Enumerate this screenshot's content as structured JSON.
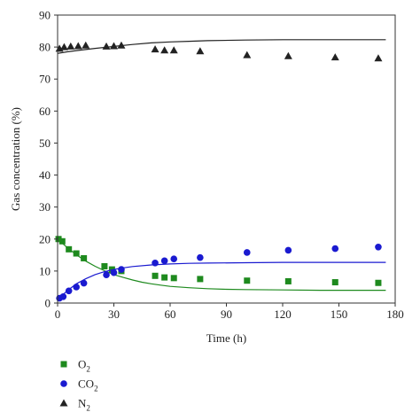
{
  "chart_data": {
    "type": "scatter",
    "xlabel": "Time (h)",
    "ylabel": "Gas concentration (%)",
    "xlim": [
      0,
      180
    ],
    "ylim": [
      0,
      90
    ],
    "xticks": [
      "0",
      "30",
      "60",
      "90",
      "120",
      "150",
      "180"
    ],
    "yticks": [
      "0",
      "10",
      "20",
      "30",
      "40",
      "50",
      "60",
      "70",
      "80",
      "90"
    ],
    "grid": false,
    "legend_position": "bottom-left",
    "series": [
      {
        "name": "O",
        "subscript": "2",
        "marker": "square",
        "color": "#1e8a1e",
        "points": [
          [
            0.5,
            20.0
          ],
          [
            2.5,
            19.3
          ],
          [
            6,
            16.8
          ],
          [
            10,
            15.5
          ],
          [
            14,
            14.0
          ],
          [
            25,
            11.5
          ],
          [
            29,
            10.5
          ],
          [
            34,
            10.0
          ],
          [
            52,
            8.5
          ],
          [
            57,
            8.0
          ],
          [
            62,
            7.8
          ],
          [
            76,
            7.5
          ],
          [
            101,
            7.0
          ],
          [
            123,
            6.8
          ],
          [
            148,
            6.5
          ],
          [
            171,
            6.3
          ]
        ],
        "fit_color": "#1e8a1e",
        "fit": [
          [
            0,
            20
          ],
          [
            5,
            17.4
          ],
          [
            10,
            15.1
          ],
          [
            15,
            13.1
          ],
          [
            20,
            11.5
          ],
          [
            25,
            10.1
          ],
          [
            30,
            8.9
          ],
          [
            35,
            8.0
          ],
          [
            40,
            7.2
          ],
          [
            45,
            6.5
          ],
          [
            50,
            6.0
          ],
          [
            55,
            5.6
          ],
          [
            60,
            5.2
          ],
          [
            70,
            4.8
          ],
          [
            80,
            4.5
          ],
          [
            90,
            4.3
          ],
          [
            100,
            4.2
          ],
          [
            120,
            4.1
          ],
          [
            140,
            4.0
          ],
          [
            160,
            4.0
          ],
          [
            175,
            4.0
          ]
        ]
      },
      {
        "name": "CO",
        "subscript": "2",
        "marker": "circle",
        "color": "#1a1ad0",
        "points": [
          [
            1,
            1.5
          ],
          [
            3,
            2.0
          ],
          [
            6,
            3.8
          ],
          [
            10,
            5.0
          ],
          [
            14,
            6.2
          ],
          [
            26,
            8.8
          ],
          [
            30,
            9.5
          ],
          [
            34,
            10.5
          ],
          [
            52,
            12.5
          ],
          [
            57,
            13.2
          ],
          [
            62,
            13.8
          ],
          [
            76,
            14.2
          ],
          [
            101,
            15.8
          ],
          [
            123,
            16.5
          ],
          [
            148,
            17.0
          ],
          [
            171,
            17.5
          ]
        ],
        "fit_color": "#1a1ad0",
        "fit": [
          [
            0,
            1
          ],
          [
            5,
            3.8
          ],
          [
            10,
            6.0
          ],
          [
            15,
            7.6
          ],
          [
            20,
            8.9
          ],
          [
            25,
            9.8
          ],
          [
            30,
            10.5
          ],
          [
            35,
            11.0
          ],
          [
            40,
            11.4
          ],
          [
            50,
            11.9
          ],
          [
            60,
            12.2
          ],
          [
            70,
            12.4
          ],
          [
            80,
            12.5
          ],
          [
            100,
            12.6
          ],
          [
            120,
            12.7
          ],
          [
            150,
            12.7
          ],
          [
            175,
            12.7
          ]
        ]
      },
      {
        "name": "N",
        "subscript": "2",
        "marker": "triangle",
        "color": "#222222",
        "points": [
          [
            1,
            79.5
          ],
          [
            3.5,
            80.0
          ],
          [
            7,
            80.2
          ],
          [
            11,
            80.3
          ],
          [
            15,
            80.5
          ],
          [
            26,
            80.2
          ],
          [
            30,
            80.3
          ],
          [
            34,
            80.5
          ],
          [
            52,
            79.3
          ],
          [
            57,
            79.0
          ],
          [
            62,
            79.0
          ],
          [
            76,
            78.7
          ],
          [
            101,
            77.5
          ],
          [
            123,
            77.2
          ],
          [
            148,
            76.8
          ],
          [
            171,
            76.5
          ]
        ],
        "fit_color": "#222222",
        "fit": [
          [
            0,
            78
          ],
          [
            5,
            78.5
          ],
          [
            10,
            78.9
          ],
          [
            20,
            79.6
          ],
          [
            30,
            80.2
          ],
          [
            40,
            80.8
          ],
          [
            50,
            81.3
          ],
          [
            60,
            81.6
          ],
          [
            70,
            81.8
          ],
          [
            80,
            82.0
          ],
          [
            100,
            82.2
          ],
          [
            120,
            82.3
          ],
          [
            150,
            82.3
          ],
          [
            175,
            82.3
          ]
        ]
      }
    ]
  }
}
